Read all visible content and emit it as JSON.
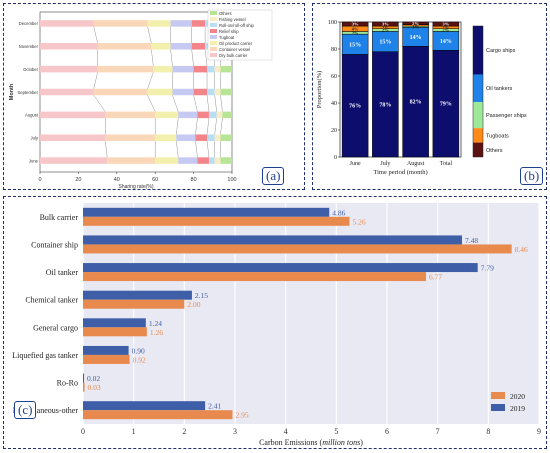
{
  "panel_labels": {
    "a": "(a)",
    "b": "(b)",
    "c": "(c)"
  },
  "colors": {
    "frame": "#1f2f6b",
    "plot_bg": "#e9e9f3",
    "bar_2020": "#e8894e",
    "bar_2019": "#3e5fa8"
  },
  "chart_data": [
    {
      "type": "bar",
      "orientation": "horizontal-stacked",
      "ylabel": "Month",
      "xlabel": "Sharing rate(%)",
      "xlim": [
        0,
        100
      ],
      "xticks": [
        0,
        20,
        40,
        60,
        80,
        100
      ],
      "categories": [
        "June",
        "July",
        "August",
        "September",
        "October",
        "November",
        "December"
      ],
      "legend": [
        "Others",
        "Fishing vessel",
        "Roll-on/roll-off ship",
        "Relief ship",
        "Tugboat",
        "Oil product carrier",
        "Container vessel",
        "Dry bulk carrier"
      ],
      "legend_position": "top-right",
      "series": [
        {
          "name": "Dry bulk carrier",
          "color": "#f7c6c9",
          "values": [
            35,
            34,
            34,
            28,
            30,
            30,
            28
          ]
        },
        {
          "name": "Container vessel",
          "color": "#fbd7b9",
          "values": [
            25,
            26,
            26,
            28,
            29,
            28,
            28
          ]
        },
        {
          "name": "Oil product carrier",
          "color": "#f3efac",
          "values": [
            12,
            11,
            12,
            13,
            10,
            10,
            12
          ]
        },
        {
          "name": "Tugboat",
          "color": "#c6c9f2",
          "values": [
            10,
            10,
            10,
            11,
            11,
            11,
            11
          ]
        },
        {
          "name": "Relief ship",
          "color": "#f2848a",
          "values": [
            6,
            6,
            6,
            7,
            7,
            7,
            7
          ]
        },
        {
          "name": "Roll-on/roll-off ship",
          "color": "#b9ddf3",
          "values": [
            3,
            4,
            4,
            4,
            4,
            5,
            4
          ]
        },
        {
          "name": "Fishing vessel",
          "color": "#f6edc4",
          "values": [
            3,
            3,
            3,
            3,
            3,
            3,
            3
          ]
        },
        {
          "name": "Others",
          "color": "#b8e496",
          "values": [
            6,
            6,
            5,
            6,
            6,
            6,
            7
          ]
        }
      ]
    },
    {
      "type": "bar",
      "orientation": "vertical-stacked",
      "ylabel": "Proportion(%)",
      "xlabel": "Time period (month)",
      "ylim": [
        0,
        100
      ],
      "yticks": [
        0,
        20,
        40,
        60,
        80,
        100
      ],
      "categories": [
        "June",
        "July",
        "August",
        "Total"
      ],
      "colorbar_labels": [
        "Cargo ships",
        "Oil tankers",
        "Passenger ships",
        "Tugboats",
        "Others"
      ],
      "series": [
        {
          "name": "Cargo ships",
          "color": "#0d0d6e",
          "values": [
            76,
            78,
            82,
            79
          ],
          "labels": [
            "76%",
            "78%",
            "82%",
            "79%"
          ]
        },
        {
          "name": "Oil tankers",
          "color": "#1f82e8",
          "values": [
            15,
            15,
            14,
            14
          ],
          "labels": [
            "15%",
            "15%",
            "14%",
            "14%"
          ]
        },
        {
          "name": "Passenger ships",
          "color": "#9ee89a",
          "values": [
            2,
            2,
            1,
            2
          ],
          "labels": [
            "2%",
            "2%",
            "1%",
            "2%"
          ]
        },
        {
          "name": "Tugboats",
          "color": "#ff8a1a",
          "values": [
            4,
            2,
            1,
            2
          ],
          "labels": [
            "4%",
            "2%",
            "1%",
            "2%"
          ]
        },
        {
          "name": "Others",
          "color": "#5a1212",
          "values": [
            3,
            3,
            2,
            3
          ],
          "labels": [
            "3%",
            "3%",
            "2%",
            "3%"
          ]
        }
      ]
    },
    {
      "type": "bar",
      "orientation": "horizontal-grouped",
      "xlabel_main": "Carbon Emissions (",
      "xlabel_unit": "million tons",
      "xlabel_end": ")",
      "xlim": [
        0,
        9
      ],
      "xticks": [
        0,
        1,
        2,
        3,
        4,
        5,
        6,
        7,
        8,
        9
      ],
      "categories": [
        "Bulk carrier",
        "Container ship",
        "Oil tanker",
        "Chemical tanker",
        "General cargo",
        "Liquefied gas tanker",
        "Ro-Ro",
        "Miscellaneous-other"
      ],
      "legend_position": "bottom-right",
      "series": [
        {
          "name": "2020",
          "values": [
            5.26,
            8.46,
            6.77,
            2.0,
            1.26,
            0.92,
            0.03,
            2.95
          ],
          "labels": [
            "5.26",
            "8.46",
            "6.77",
            "2.00",
            "1.26",
            "0.92",
            "0.03",
            "2.95"
          ]
        },
        {
          "name": "2019",
          "values": [
            4.86,
            7.48,
            7.79,
            2.15,
            1.24,
            0.9,
            0.02,
            2.41
          ],
          "labels": [
            "4.86",
            "7.48",
            "7.79",
            "2.15",
            "1.24",
            "0.90",
            "0.02",
            "2.41"
          ]
        }
      ]
    }
  ]
}
